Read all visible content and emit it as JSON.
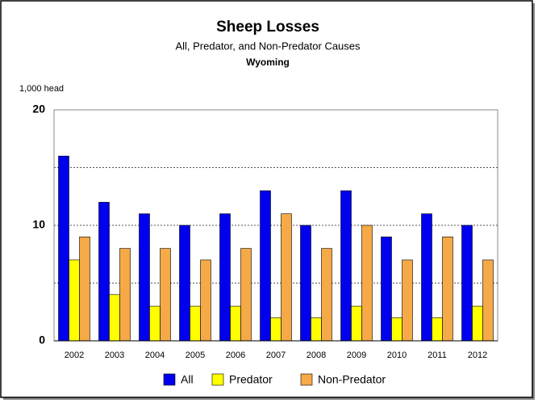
{
  "chart_data": {
    "type": "bar",
    "title": "Sheep Losses",
    "subtitle": "All, Predator, and Non-Predator Causes",
    "subtitle2": "Wyoming",
    "y_label": "1,000 head",
    "categories": [
      "2002",
      "2003",
      "2004",
      "2005",
      "2006",
      "2007",
      "2008",
      "2009",
      "2010",
      "2011",
      "2012"
    ],
    "series": [
      {
        "name": "All",
        "color": "#0000ee",
        "values": [
          16,
          12,
          11,
          10,
          11,
          13,
          10,
          13,
          9,
          11,
          10
        ]
      },
      {
        "name": "Predator",
        "color": "#ffff00",
        "values": [
          7,
          4,
          3,
          3,
          3,
          2,
          2,
          3,
          2,
          2,
          3
        ]
      },
      {
        "name": "Non-Predator",
        "color": "#f5a947",
        "values": [
          9,
          8,
          8,
          7,
          8,
          11,
          8,
          10,
          7,
          9,
          7
        ]
      }
    ],
    "ylim": [
      0,
      20
    ],
    "yticks": [
      0,
      10,
      20
    ],
    "minor_yticks": [
      5,
      15
    ],
    "grid": true,
    "legend": "bottom"
  }
}
